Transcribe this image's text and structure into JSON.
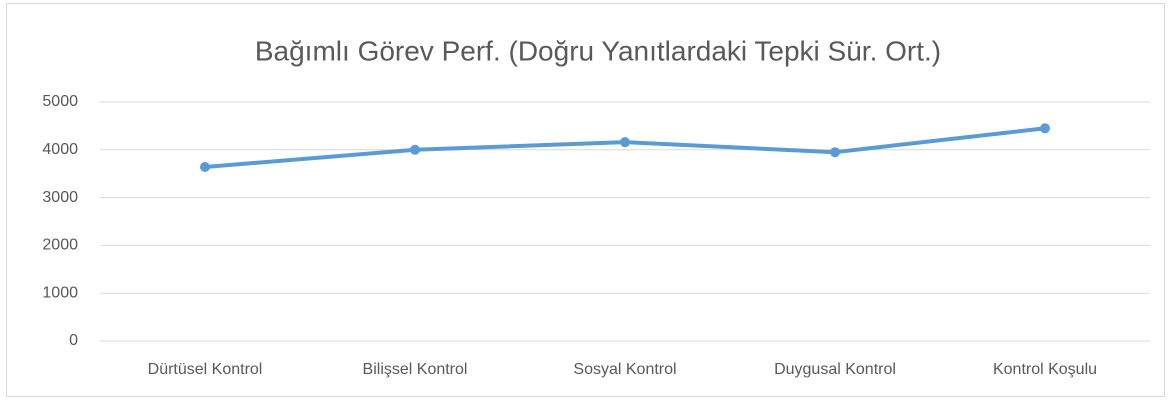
{
  "chart_data": {
    "type": "line",
    "title": "Bağımlı Görev Perf. (Doğru Yanıtlardaki Tepki Sür. Ort.)",
    "categories": [
      "Dürtüsel Kontrol",
      "Bilişsel Kontrol",
      "Sosyal Kontrol",
      "Duygusal Kontrol",
      "Kontrol Koşulu"
    ],
    "series": [
      {
        "name": "Series1",
        "color": "#5b9bd5",
        "values": [
          3640,
          4000,
          4160,
          3950,
          4450
        ]
      }
    ],
    "ylim": [
      0,
      5000
    ],
    "yticks": [
      0,
      1000,
      2000,
      3000,
      4000,
      5000
    ],
    "grid": true
  }
}
